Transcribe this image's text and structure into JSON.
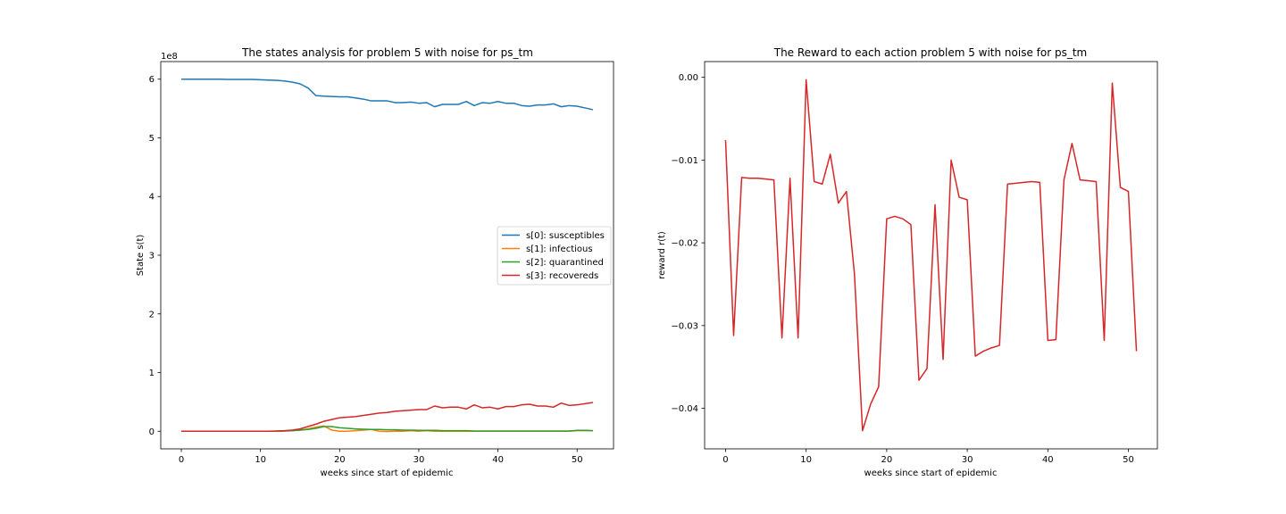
{
  "chart_data": [
    {
      "type": "line",
      "title": "The states analysis for problem 5 with noise for ps_tm",
      "xlabel": "weeks since start of epidemic",
      "ylabel": "State s(t)",
      "offset_label": "1e8",
      "xlim": [
        -2.6,
        54.6
      ],
      "ylim": [
        -0.3,
        6.3
      ],
      "xticks": [
        0,
        10,
        20,
        30,
        40,
        50
      ],
      "yticks": [
        0,
        1,
        2,
        3,
        4,
        5,
        6
      ],
      "legend_position": "center-right",
      "x": [
        0,
        1,
        2,
        3,
        4,
        5,
        6,
        7,
        8,
        9,
        10,
        11,
        12,
        13,
        14,
        15,
        16,
        17,
        18,
        19,
        20,
        21,
        22,
        23,
        24,
        25,
        26,
        27,
        28,
        29,
        30,
        31,
        32,
        33,
        34,
        35,
        36,
        37,
        38,
        39,
        40,
        41,
        42,
        43,
        44,
        45,
        46,
        47,
        48,
        49,
        50,
        51,
        52
      ],
      "series": [
        {
          "name": "s[0]: susceptibles",
          "color": "#1f77b4",
          "values": [
            6.0,
            6.0,
            6.0,
            6.0,
            6.0,
            6.0,
            5.995,
            5.995,
            5.995,
            5.995,
            5.99,
            5.985,
            5.98,
            5.97,
            5.95,
            5.92,
            5.85,
            5.72,
            5.71,
            5.705,
            5.7,
            5.7,
            5.68,
            5.66,
            5.63,
            5.63,
            5.63,
            5.6,
            5.6,
            5.61,
            5.59,
            5.6,
            5.53,
            5.57,
            5.57,
            5.57,
            5.62,
            5.55,
            5.6,
            5.59,
            5.62,
            5.59,
            5.59,
            5.55,
            5.54,
            5.56,
            5.56,
            5.58,
            5.53,
            5.55,
            5.54,
            5.51,
            5.48
          ]
        },
        {
          "name": "s[1]: infectious",
          "color": "#ff7f0e",
          "values": [
            0,
            0,
            0,
            0,
            0,
            0,
            0,
            0,
            0,
            0,
            0,
            0,
            0,
            0.005,
            0.01,
            0.02,
            0.04,
            0.07,
            0.09,
            0.02,
            0.0,
            0.0,
            0.01,
            0.02,
            0.03,
            0.0,
            -0.005,
            0.0,
            0.0,
            0.01,
            0.0,
            0.01,
            0.0,
            0.0,
            0.0,
            0.0,
            0.0,
            0.0,
            0.0,
            0.0,
            0.0,
            0.0,
            0.0,
            0.0,
            0.0,
            0.0,
            0.0,
            0.0,
            0.0,
            0.0,
            0.01,
            0.01,
            0.01
          ]
        },
        {
          "name": "s[2]: quarantined",
          "color": "#2ca02c",
          "values": [
            0,
            0,
            0,
            0,
            0,
            0,
            0,
            0,
            0,
            0,
            0,
            0,
            0,
            0.005,
            0.01,
            0.02,
            0.03,
            0.05,
            0.08,
            0.08,
            0.06,
            0.05,
            0.04,
            0.035,
            0.03,
            0.03,
            0.025,
            0.025,
            0.02,
            0.02,
            0.015,
            0.015,
            0.015,
            0.01,
            0.01,
            0.01,
            0.01,
            0.005,
            0.005,
            0.005,
            0.005,
            0.005,
            0.005,
            0.005,
            0.005,
            0.005,
            0.005,
            0.005,
            0.005,
            0.005,
            0.015,
            0.015,
            0.01
          ]
        },
        {
          "name": "s[3]: recovereds",
          "color": "#d62728",
          "values": [
            0,
            0,
            0,
            0,
            0,
            0,
            0,
            0,
            0,
            0,
            0,
            0,
            0.005,
            0.01,
            0.02,
            0.04,
            0.08,
            0.12,
            0.17,
            0.2,
            0.23,
            0.24,
            0.25,
            0.27,
            0.29,
            0.31,
            0.32,
            0.34,
            0.35,
            0.36,
            0.37,
            0.37,
            0.43,
            0.4,
            0.41,
            0.41,
            0.38,
            0.45,
            0.4,
            0.41,
            0.38,
            0.42,
            0.42,
            0.45,
            0.46,
            0.43,
            0.43,
            0.41,
            0.48,
            0.44,
            0.45,
            0.47,
            0.49
          ]
        }
      ]
    },
    {
      "type": "line",
      "title": "The Reward to each action problem 5 with noise for ps_tm",
      "xlabel": "weeks since start of epidemic",
      "ylabel": "reward r(t)",
      "xlim": [
        -2.6,
        53.6
      ],
      "ylim": [
        -0.0449,
        0.0019
      ],
      "xticks": [
        0,
        10,
        20,
        30,
        40,
        50
      ],
      "yticks": [
        0.0,
        -0.01,
        -0.02,
        -0.03,
        -0.04
      ],
      "ytick_labels": [
        "0.00",
        "−0.01",
        "−0.02",
        "−0.03",
        "−0.04"
      ],
      "x": [
        0,
        1,
        2,
        3,
        4,
        5,
        6,
        7,
        8,
        9,
        10,
        11,
        12,
        13,
        14,
        15,
        16,
        17,
        18,
        19,
        20,
        21,
        22,
        23,
        24,
        25,
        26,
        27,
        28,
        29,
        30,
        31,
        32,
        33,
        34,
        35,
        36,
        37,
        38,
        39,
        40,
        41,
        42,
        43,
        44,
        45,
        46,
        47,
        48,
        49,
        50,
        51
      ],
      "series": [
        {
          "color": "#d62728",
          "values": [
            -0.0076,
            -0.0312,
            -0.0121,
            -0.0122,
            -0.0122,
            -0.0123,
            -0.0124,
            -0.0315,
            -0.0122,
            -0.0315,
            -0.0003,
            -0.0126,
            -0.0129,
            -0.0093,
            -0.0152,
            -0.0138,
            -0.0238,
            -0.0427,
            -0.0395,
            -0.0374,
            -0.0171,
            -0.0168,
            -0.0171,
            -0.0178,
            -0.0366,
            -0.0352,
            -0.0154,
            -0.0341,
            -0.01,
            -0.0145,
            -0.0148,
            -0.0337,
            -0.0331,
            -0.0327,
            -0.0324,
            -0.0129,
            -0.0128,
            -0.0127,
            -0.0126,
            -0.0127,
            -0.0318,
            -0.0317,
            -0.0124,
            -0.008,
            -0.0124,
            -0.0125,
            -0.0126,
            -0.0318,
            -0.0007,
            -0.0133,
            -0.0138,
            -0.0331
          ]
        }
      ]
    }
  ]
}
